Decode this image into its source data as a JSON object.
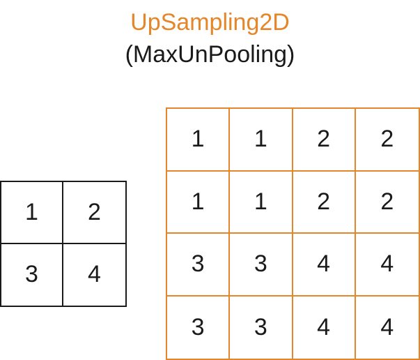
{
  "title": "UpSampling2D",
  "subtitle": "(MaxUnPooling)",
  "colors": {
    "title": "#E5862B",
    "subtitle": "#1a1a1a",
    "input_border": "#1a1a1a",
    "output_border": "#E5862B",
    "text": "#1a1a1a"
  },
  "input_grid": {
    "cells": [
      "1",
      "2",
      "3",
      "4"
    ]
  },
  "output_grid": {
    "cells": [
      "1",
      "1",
      "2",
      "2",
      "1",
      "1",
      "2",
      "2",
      "3",
      "3",
      "4",
      "4",
      "3",
      "3",
      "4",
      "4"
    ]
  }
}
